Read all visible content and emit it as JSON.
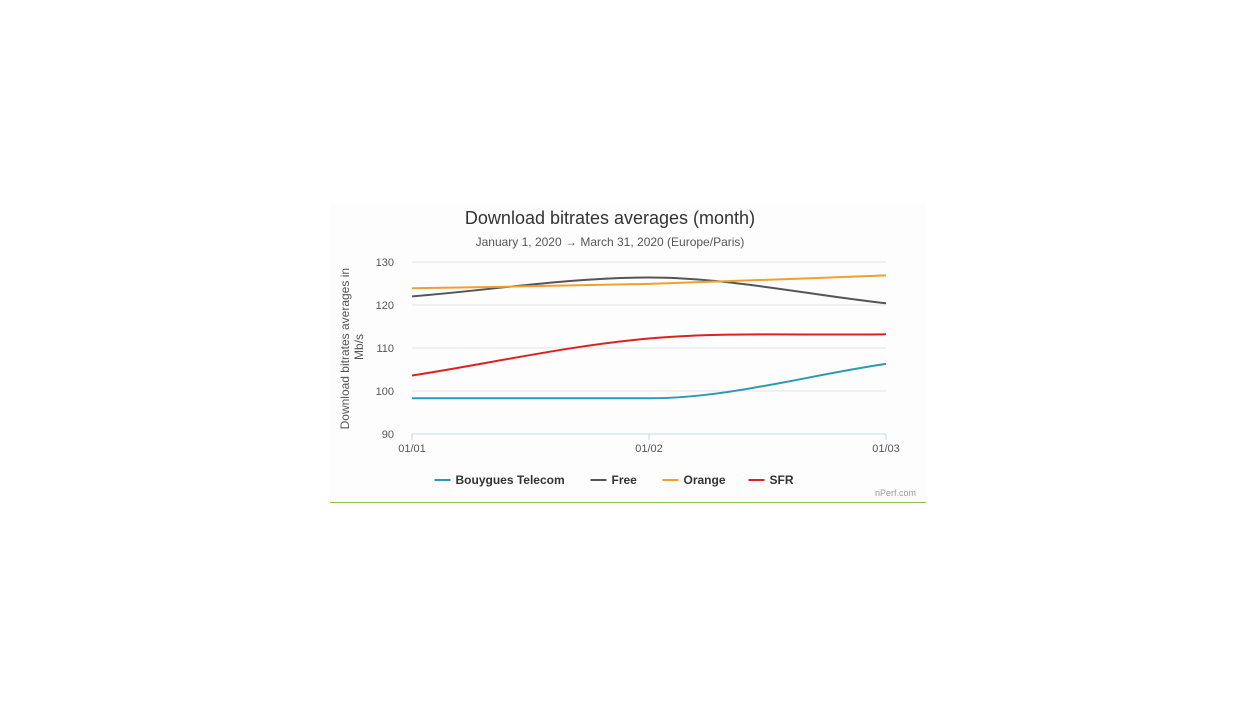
{
  "chart_data": {
    "type": "line",
    "title": "Download bitrates averages (month)",
    "subtitle": "January 1, 2020 → March 31, 2020 (Europe/Paris)",
    "xlabel": "",
    "ylabel": "Download bitrates averages in Mb/s",
    "ylim": [
      90,
      130
    ],
    "yticks": [
      "130",
      "120",
      "110",
      "100",
      "90"
    ],
    "categories": [
      "01/01",
      "01/02",
      "01/03"
    ],
    "grid": true,
    "legend_position": "bottom",
    "series": [
      {
        "name": "Bouygues Telecom",
        "color": "#2b9ab5",
        "values": [
          98.3,
          98.3,
          106.3
        ]
      },
      {
        "name": "Free",
        "color": "#555555",
        "values": [
          122.0,
          126.4,
          120.4
        ]
      },
      {
        "name": "Orange",
        "color": "#f0a030",
        "values": [
          123.9,
          124.9,
          126.9
        ]
      },
      {
        "name": "SFR",
        "color": "#e02020",
        "values": [
          103.6,
          112.2,
          113.2
        ]
      }
    ],
    "credit": "nPerf.com"
  }
}
